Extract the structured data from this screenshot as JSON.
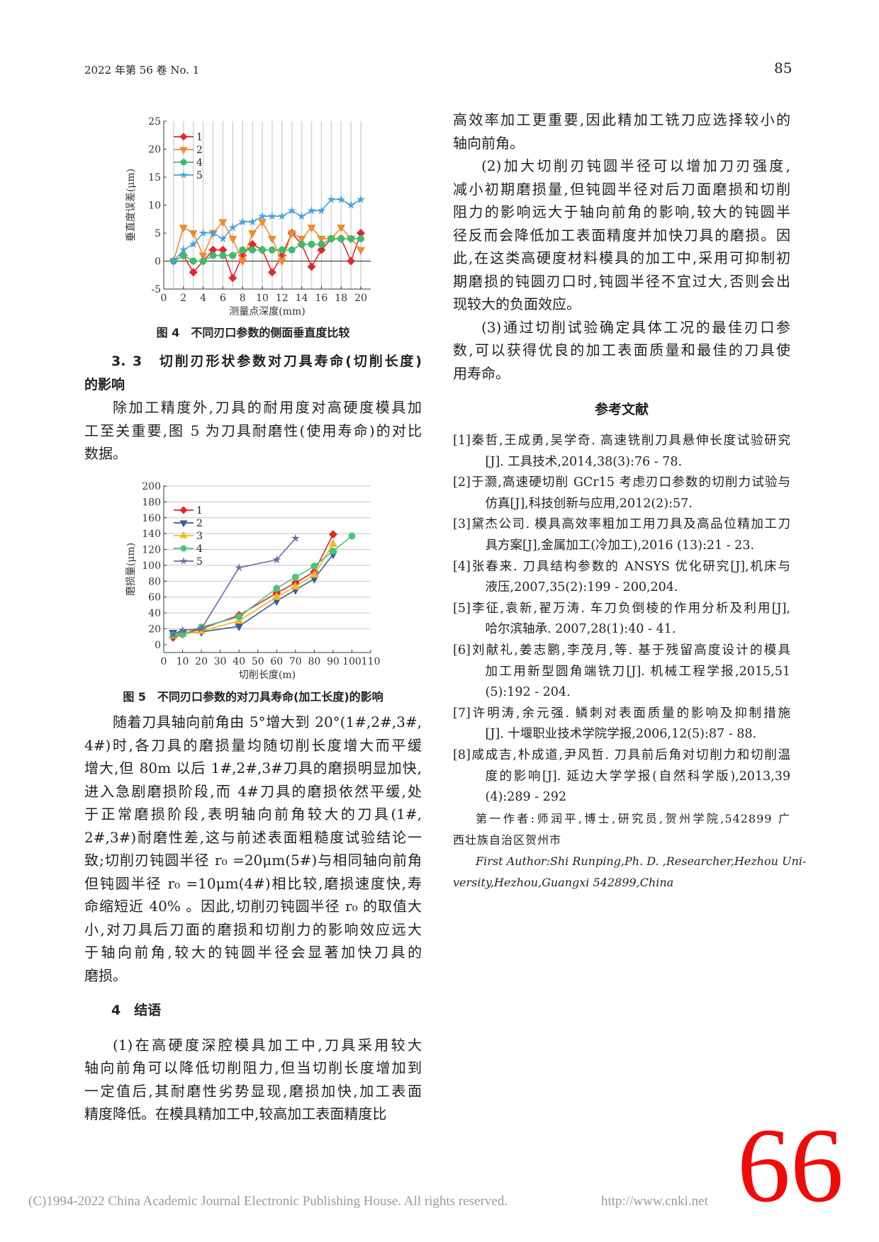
{
  "header": {
    "journal": "2022 年第 56 卷 No. 1",
    "page": "85"
  },
  "fig4": {
    "caption": "图 4　不同刃口参数的侧面垂直度比较"
  },
  "section33": {
    "title_lines": [
      "3. 3　切削刃形状参数对刀具寿命(切削长度)",
      "的影响"
    ]
  },
  "left_paras": {
    "p1": [
      "除加工精度外,刀具的耐用度对高硬度模具加",
      "工至关重要,图 5 为刀具耐磨性(使用寿命)的对比",
      "数据。"
    ],
    "p2": [
      "随着刀具轴向前角由 5°增大到 20°(1#,2#,3#,",
      "4#)时,各刀具的磨损量均随切削长度增大而平缓",
      "增大,但 80m 以后 1#,2#,3#刀具的磨损明显加快,",
      "进入急剧磨损阶段,而 4#刀具的磨损依然平缓,处",
      "于正常磨损阶段,表明轴向前角较大的刀具(1#,",
      "2#,3#)耐磨性差,这与前述表面粗糙度试验结论一",
      "致;切削刃钝圆半径 r₀ =20μm(5#)与相同轴向前角",
      "但钝圆半径 r₀ =10μm(4#)相比较,磨损速度快,寿",
      "命缩短近 40% 。因此,切削刃钝圆半径 r₀ 的取值大",
      "小,对刀具后刀面的磨损和切削力的影响效应远大",
      "于轴向前角,较大的钝圆半径会显著加快刀具的",
      "磨损。"
    ],
    "p3": [
      "(1)在高硬度深腔模具加工中,刀具采用较大",
      "轴向前角可以降低切削阻力,但当切削长度增加到",
      "一定值后,其耐磨性劣势显现,磨损加快,加工表面",
      "精度降低。在模具精加工中,较高加工表面精度比"
    ]
  },
  "fig5": {
    "caption": "图 5　不同刃口参数的对刀具寿命(加工长度)的影响"
  },
  "section4": {
    "title": "4　结语"
  },
  "right_paras": {
    "p1": [
      "高效率加工更重要,因此精加工铣刀应选择较小的",
      "轴向前角。"
    ],
    "p2": [
      "(2)加大切削刃钝圆半径可以增加刀刃强度,",
      "减小初期磨损量,但钝圆半径对后刀面磨损和切削",
      "阻力的影响远大于轴向前角的影响,较大的钝圆半",
      "径反而会降低加工表面精度并加快刀具的磨损。因",
      "此,在这类高硬度材料模具的加工中,采用可抑制初",
      "期磨损的钝圆刃口时,钝圆半径不宜过大,否则会出",
      "现较大的负面效应。"
    ],
    "p3": [
      "(3)通过切削试验确定具体工况的最佳刃口参",
      "数,可以获得优良的加工表面质量和最佳的刀具使",
      "用寿命。"
    ]
  },
  "references": {
    "title": "参考文献",
    "items": [
      [
        "[1]秦哲,王成勇,吴学奇. 高速铣削刀具悬伸长度试验研究",
        "[J]. 工具技术,2014,38(3):76 - 78."
      ],
      [
        "[2]于灏,高速硬切削 GCr15 考虑刃口参数的切削力试验与",
        "仿真[J],科技创新与应用,2012(2):57."
      ],
      [
        "[3]黛杰公司. 模具高效率粗加工用刀具及高品位精加工刀",
        "具方案[J],金属加工(冷加工),2016 (13):21 - 23."
      ],
      [
        "[4]张春来. 刀具结构参数的 ANSYS 优化研究[J],机床与",
        "液压,2007,35(2):199 - 200,204."
      ],
      [
        "[5]李征,袁新,翟万涛. 车刀负倒棱的作用分析及利用[J],",
        "哈尔滨轴承. 2007,28(1):40 - 41."
      ],
      [
        "[6]刘献礼,姜志鹏,李茂月,等. 基于残留高度设计的模具",
        "加工用新型圆角端铣刀[J]. 机械工程学报,2015,51",
        "(5):192 - 204."
      ],
      [
        "[7]许明涛,余元强. 鳞刺对表面质量的影响及抑制措施",
        "[J]. 十堰职业技术学院学报,2006,12(5):87 - 88."
      ],
      [
        "[8]咸成吉,朴成道,尹风哲. 刀具前后角对切削力和切削温",
        "度的影响[J]. 延边大学学报(自然科学版),2013,39",
        "(4):289 - 292"
      ]
    ]
  },
  "author": {
    "cn": [
      "第一作者:师润平,博士,研究员,贺州学院,542899 广",
      "西壮族自治区贺州市"
    ],
    "en": [
      "First Author:Shi Runping,Ph. D. ,Researcher,Hezhou Uni-",
      "versity,Hezhou,Guangxi 542899,China"
    ]
  },
  "footer": {
    "copyright": "(C)1994-2022 China Academic Journal Electronic Publishing House. All rights reserved.",
    "url": "http://www.cnki.net",
    "stamp": "66"
  },
  "chart_data": [
    {
      "type": "line",
      "xlabel": "测量点深度(mm)",
      "ylabel": "垂直度误差(μm)",
      "xlim": [
        0,
        20
      ],
      "ylim": [
        -5,
        25
      ],
      "xticks": [
        0,
        2,
        4,
        6,
        8,
        10,
        12,
        14,
        16,
        18,
        20
      ],
      "yticks": [
        -5,
        0,
        5,
        10,
        15,
        20,
        25
      ],
      "grid": "vertical",
      "legend": "top-left",
      "x": [
        1,
        2,
        3,
        4,
        5,
        6,
        7,
        8,
        9,
        10,
        11,
        12,
        13,
        14,
        15,
        16,
        17,
        18,
        19,
        20
      ],
      "series": [
        {
          "name": "1",
          "color": "#e0282c",
          "marker": "diamond",
          "values": [
            0,
            1,
            -2,
            0,
            2,
            2,
            -3,
            1,
            3,
            2,
            -2,
            1,
            5,
            3,
            -1,
            2,
            4,
            4,
            0,
            5
          ]
        },
        {
          "name": "2",
          "color": "#f08a2a",
          "marker": "triangle-down",
          "values": [
            0,
            6,
            5,
            1,
            5,
            7,
            4,
            0,
            5,
            7,
            4,
            0,
            5,
            4,
            6,
            4,
            4,
            6,
            4,
            2
          ]
        },
        {
          "name": "4",
          "color": "#3fba6c",
          "marker": "circle",
          "values": [
            0,
            1,
            0,
            0,
            1,
            1,
            1,
            2,
            2,
            2,
            2,
            2,
            2,
            3,
            3,
            3,
            4,
            4,
            4,
            4
          ]
        },
        {
          "name": "5",
          "color": "#4aa0dc",
          "marker": "star",
          "values": [
            0,
            2,
            3,
            5,
            5,
            4,
            6,
            7,
            7,
            8,
            8,
            8,
            9,
            8,
            9,
            9,
            11,
            11,
            10,
            11
          ]
        }
      ]
    },
    {
      "type": "line",
      "xlabel": "切削长度(m)",
      "ylabel": "磨损量(μm)",
      "xlim": [
        0,
        110
      ],
      "ylim": [
        -10,
        200
      ],
      "xticks": [
        0,
        10,
        20,
        30,
        40,
        50,
        60,
        70,
        80,
        90,
        100,
        110
      ],
      "yticks": [
        0,
        20,
        40,
        60,
        80,
        100,
        120,
        140,
        160,
        180,
        200
      ],
      "grid": "horizontal",
      "legend": "top-left",
      "series": [
        {
          "name": "1",
          "color": "#e0242a",
          "marker": "diamond",
          "x": [
            5,
            10,
            20,
            40,
            60,
            70,
            80,
            90
          ],
          "values": [
            9,
            13,
            20,
            37,
            65,
            78,
            92,
            139
          ]
        },
        {
          "name": "2",
          "color": "#2f5f9c",
          "marker": "triangle-down",
          "x": [
            5,
            10,
            20,
            40,
            60,
            70,
            80,
            90
          ],
          "values": [
            15,
            14,
            16,
            23,
            55,
            69,
            83,
            114
          ]
        },
        {
          "name": "3",
          "color": "#f5b820",
          "marker": "triangle-up",
          "x": [
            5,
            10,
            20,
            40,
            60,
            70,
            80,
            90
          ],
          "values": [
            11,
            13,
            17,
            30,
            60,
            73,
            88,
            127
          ]
        },
        {
          "name": "4",
          "color": "#4cc47a",
          "marker": "circle",
          "x": [
            5,
            10,
            20,
            40,
            60,
            70,
            80,
            90,
            100
          ],
          "values": [
            12,
            13,
            22,
            35,
            71,
            85,
            99,
            118,
            137
          ]
        },
        {
          "name": "5",
          "color": "#6b6ba3",
          "marker": "star",
          "x": [
            5,
            10,
            20,
            40,
            60,
            70
          ],
          "values": [
            13,
            18,
            20,
            97,
            107,
            134
          ]
        }
      ]
    }
  ]
}
